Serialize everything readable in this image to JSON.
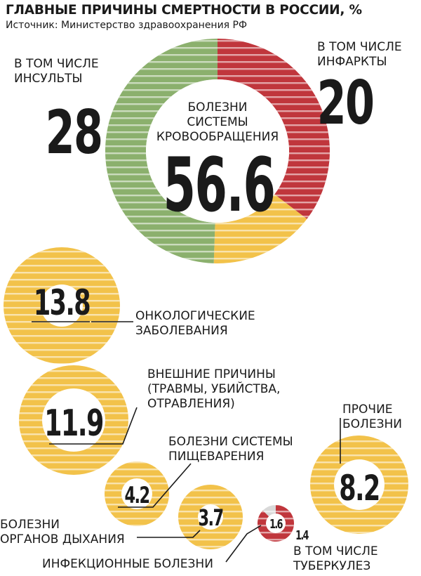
{
  "title": "ГЛАВНЫЕ ПРИЧИНЫ СМЕРТНОСТИ В РОССИИ, %",
  "source": "Источник: Министерство здравоохранения РФ",
  "colors": {
    "green": "#8bb06d",
    "red": "#c0363c",
    "yellow": "#f2c24a",
    "text": "#1a1a1a"
  },
  "chart_data": {
    "type": "pie",
    "title": "ГЛАВНЫЕ ПРИЧИНЫ СМЕРТНОСТИ В РОССИИ, %",
    "main": {
      "name": "БОЛЕЗНИ СИСТЕМЫ КРОВООБРАЩЕНИЯ",
      "value": 56.6,
      "breakdown": [
        {
          "name": "В ТОМ ЧИСЛЕ ИНСУЛЬТЫ",
          "value": 28,
          "color": "#8bb06d"
        },
        {
          "name": "В ТОМ ЧИСЛЕ ИНФАРКТЫ",
          "value": 20,
          "color": "#c0363c"
        },
        {
          "name": "",
          "value": 8.6,
          "color": "#f2c24a"
        }
      ]
    },
    "categories": [
      {
        "name": "ОНКОЛОГИЧЕСКИЕ ЗАБОЛЕВАНИЯ",
        "value": 13.8
      },
      {
        "name": "ВНЕШНИЕ ПРИЧИНЫ (ТРАВМЫ, УБИЙСТВА, ОТРАВЛЕНИЯ)",
        "value": 11.9
      },
      {
        "name": "ПРОЧИЕ БОЛЕЗНИ",
        "value": 8.2
      },
      {
        "name": "БОЛЕЗНИ СИСТЕМЫ ПИЩЕВАРЕНИЯ",
        "value": 4.2
      },
      {
        "name": "БОЛЕЗНИ ОРГАНОВ ДЫХАНИЯ",
        "value": 3.7
      },
      {
        "name": "ИНФЕКЦИОННЫЕ БОЛЕЗНИ",
        "value": 1.6,
        "breakdown": [
          {
            "name": "В ТОМ ЧИСЛЕ ТУБЕРКУЛЕЗ",
            "value": 1.4
          }
        ]
      }
    ]
  },
  "labels": {
    "strokes_lines": [
      "В ТОМ ЧИСЛЕ",
      "ИНСУЛЬТЫ"
    ],
    "infarcts_lines": [
      "В ТОМ ЧИСЛЕ",
      "ИНФАРКТЫ"
    ],
    "circulatory_lines": [
      "БОЛЕЗНИ",
      "СИСТЕМЫ",
      "КРОВООБРАЩЕНИЯ"
    ],
    "oncology_lines": [
      "ОНКОЛОГИЧЕСКИЕ",
      "ЗАБОЛЕВАНИЯ"
    ],
    "external_lines": [
      "ВНЕШНИЕ ПРИЧИНЫ",
      "(ТРАВМЫ, УБИЙСТВА,",
      "ОТРАВЛЕНИЯ)"
    ],
    "other_lines": [
      "ПРОЧИЕ",
      "БОЛЕЗНИ"
    ],
    "digestive_lines": [
      "БОЛЕЗНИ СИСТЕМЫ",
      "ПИЩЕВАРЕНИЯ"
    ],
    "respiratory_lines": [
      "БОЛЕЗНИ",
      "ОРГАНОВ ДЫХАНИЯ"
    ],
    "infectious_lines": [
      "ИНФЕКЦИОННЫЕ БОЛЕЗНИ"
    ],
    "tb_lines": [
      "В ТОМ ЧИСЛЕ",
      "ТУБЕРКУЛЕЗ"
    ]
  },
  "value_labels": {
    "strokes": "28",
    "infarcts": "20",
    "circulatory": "56.6",
    "oncology": "13.8",
    "external": "11.9",
    "other": "8.2",
    "digestive": "4.2",
    "respiratory": "3.7",
    "infectious": "1.6",
    "tb": "1.4"
  }
}
